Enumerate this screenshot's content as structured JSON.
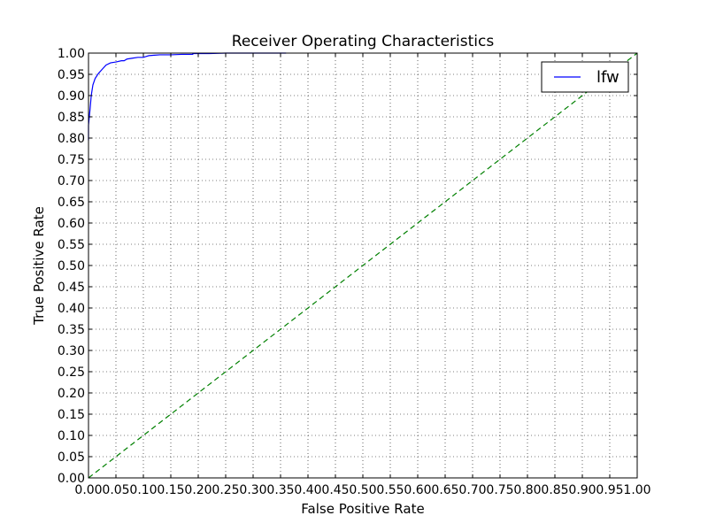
{
  "chart_data": {
    "type": "line",
    "title": "Receiver Operating Characteristics",
    "xlabel": "False Positive Rate",
    "ylabel": "True Positive Rate",
    "xlim": [
      0,
      1
    ],
    "ylim": [
      0,
      1
    ],
    "grid": true,
    "legend_position": "top-right",
    "x_ticks": [
      "0.00",
      "0.05",
      "0.10",
      "0.15",
      "0.20",
      "0.25",
      "0.30",
      "0.35",
      "0.40",
      "0.45",
      "0.50",
      "0.55",
      "0.60",
      "0.65",
      "0.70",
      "0.75",
      "0.80",
      "0.85",
      "0.90",
      "0.95",
      "1.00"
    ],
    "y_ticks": [
      "0.00",
      "0.05",
      "0.10",
      "0.15",
      "0.20",
      "0.25",
      "0.30",
      "0.35",
      "0.40",
      "0.45",
      "0.50",
      "0.55",
      "0.60",
      "0.65",
      "0.70",
      "0.75",
      "0.80",
      "0.85",
      "0.90",
      "0.95",
      "1.00"
    ],
    "series": [
      {
        "name": "lfw",
        "color": "#0000ff",
        "style": "solid",
        "x": [
          0.0,
          0.0,
          0.003,
          0.005,
          0.008,
          0.012,
          0.018,
          0.025,
          0.032,
          0.04,
          0.05,
          0.06,
          0.065,
          0.07,
          0.08,
          0.09,
          0.1,
          0.105,
          0.11,
          0.12,
          0.13,
          0.15,
          0.17,
          0.19,
          0.19,
          0.22,
          0.25,
          0.3,
          0.36
        ],
        "y": [
          0.795,
          0.83,
          0.87,
          0.9,
          0.925,
          0.94,
          0.952,
          0.962,
          0.972,
          0.977,
          0.979,
          0.982,
          0.982,
          0.986,
          0.988,
          0.99,
          0.99,
          0.992,
          0.994,
          0.995,
          0.996,
          0.996,
          0.997,
          0.997,
          0.999,
          0.999,
          1.0,
          1.0,
          1.0
        ]
      },
      {
        "color": "#008000",
        "style": "dashed",
        "x": [
          0,
          1
        ],
        "y": [
          0,
          1
        ]
      }
    ]
  }
}
